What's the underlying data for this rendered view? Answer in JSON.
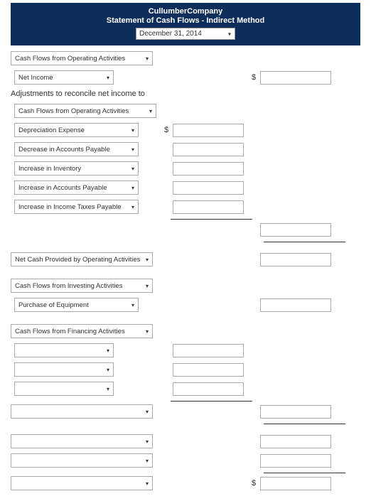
{
  "header": {
    "company": "CullumberCompany",
    "statement": "Statement of Cash Flows - Indirect Method",
    "date": "December 31, 2014"
  },
  "sections": {
    "operating_header": "Cash Flows from Operating Activities",
    "net_income": "Net Income",
    "adjustments_label": "Adjustments to reconcile net income to",
    "operating_sub": "Cash Flows from Operating Activities",
    "depreciation": "Depreciation Expense",
    "decrease_ap": "Decrease in Accounts Payable",
    "increase_inv": "Increase in Inventory",
    "increase_ap": "Increase in Accounts Payable",
    "increase_tax": "Increase in Income Taxes Payable",
    "net_cash_op": "Net Cash Provided by Operating Activities",
    "investing_header": "Cash Flows from Investing Activities",
    "purchase_equip": "Purchase of Equipment",
    "financing_header": "Cash Flows from Financing Activities"
  },
  "dollar": "$",
  "colors": {
    "header_bg": "#0d2d5a",
    "border": "#aaaaaa",
    "text": "#333333"
  }
}
